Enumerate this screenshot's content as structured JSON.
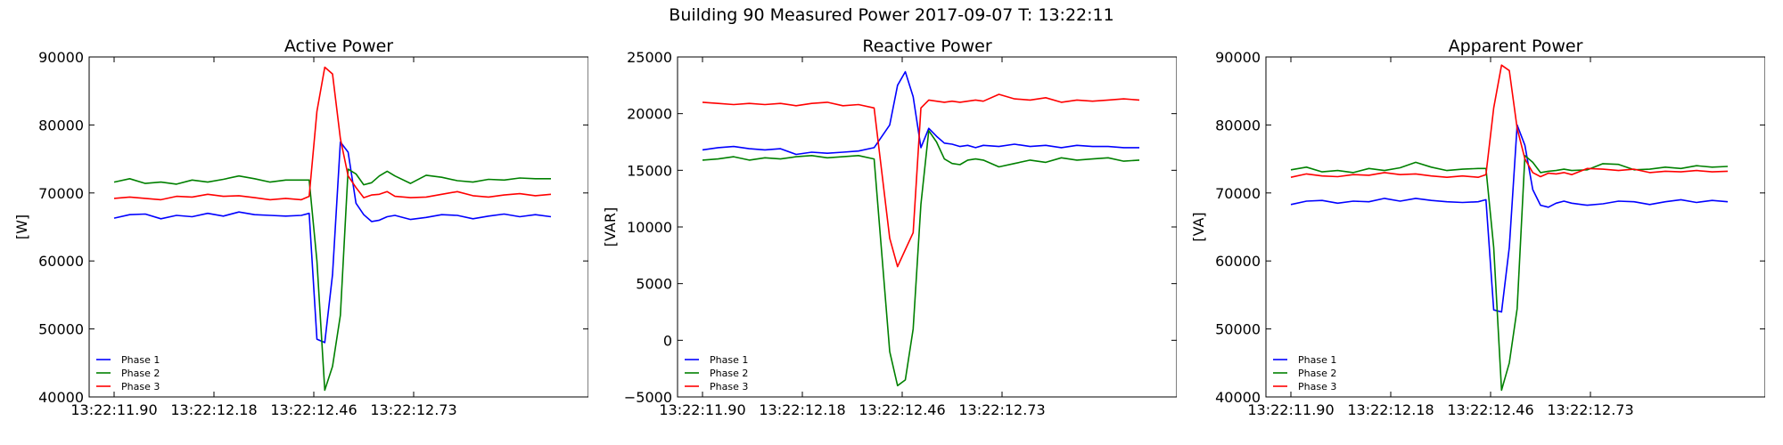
{
  "figure": {
    "suptitle": "Building 90 Measured Power 2017-09-07 T: 13:22:11"
  },
  "chart_data": [
    {
      "type": "line",
      "title": "Active Power",
      "xlabel": "",
      "ylabel": "[W]",
      "ylim": [
        40000,
        90000
      ],
      "yticks": [
        40000,
        50000,
        60000,
        70000,
        80000,
        90000
      ],
      "xlim": [
        -0.8,
        15.2
      ],
      "xtick_positions": [
        0,
        3.2,
        6.4,
        9.6
      ],
      "xtick_labels": [
        "13:22:11.90",
        "13:22:12.18",
        "13:22:12.46",
        "13:22:12.73"
      ],
      "grid": false,
      "legend": "lower-left",
      "x": [
        0,
        0.5,
        1,
        1.5,
        2,
        2.5,
        3,
        3.5,
        4,
        4.5,
        5,
        5.5,
        6,
        6.25,
        6.5,
        6.75,
        7,
        7.25,
        7.5,
        7.75,
        8,
        8.25,
        8.5,
        8.75,
        9,
        9.5,
        10,
        10.5,
        11,
        11.5,
        12,
        12.5,
        13,
        13.5,
        14
      ],
      "series": [
        {
          "name": "Phase 1",
          "color": "#0000ff",
          "values": [
            66300,
            66800,
            66900,
            66200,
            66700,
            66500,
            67000,
            66600,
            67200,
            66800,
            66700,
            66600,
            66700,
            67000,
            48500,
            48000,
            58000,
            77500,
            76000,
            68500,
            66800,
            65800,
            66000,
            66500,
            66700,
            66100,
            66400,
            66800,
            66700,
            66200,
            66600,
            66900,
            66500,
            66800,
            66500
          ]
        },
        {
          "name": "Phase 2",
          "color": "#008000",
          "values": [
            71600,
            72100,
            71400,
            71600,
            71300,
            71900,
            71600,
            72000,
            72500,
            72100,
            71600,
            71900,
            71900,
            71900,
            60000,
            41000,
            44500,
            52000,
            73500,
            72800,
            71200,
            71500,
            72500,
            73200,
            72500,
            71400,
            72600,
            72300,
            71800,
            71600,
            72000,
            71900,
            72200,
            72100,
            72100
          ]
        },
        {
          "name": "Phase 3",
          "color": "#ff0000",
          "values": [
            69200,
            69400,
            69200,
            69000,
            69500,
            69400,
            69800,
            69500,
            69600,
            69300,
            69000,
            69200,
            69000,
            69500,
            82000,
            88500,
            87500,
            78000,
            72500,
            70800,
            69300,
            69700,
            69800,
            70200,
            69500,
            69300,
            69400,
            69800,
            70200,
            69600,
            69400,
            69700,
            69900,
            69600,
            69800
          ]
        }
      ]
    },
    {
      "type": "line",
      "title": "Reactive Power",
      "xlabel": "",
      "ylabel": "[VAR]",
      "ylim": [
        -5000,
        25000
      ],
      "yticks": [
        -5000,
        0,
        5000,
        10000,
        15000,
        20000,
        25000
      ],
      "xlim": [
        -0.8,
        15.2
      ],
      "xtick_positions": [
        0,
        3.2,
        6.4,
        9.6
      ],
      "xtick_labels": [
        "13:22:11.90",
        "13:22:12.18",
        "13:22:12.46",
        "13:22:12.73"
      ],
      "grid": false,
      "legend": "lower-left",
      "x": [
        0,
        0.5,
        1,
        1.5,
        2,
        2.5,
        3,
        3.5,
        4,
        4.5,
        5,
        5.5,
        6,
        6.25,
        6.5,
        6.75,
        7,
        7.25,
        7.5,
        7.75,
        8,
        8.25,
        8.5,
        8.75,
        9,
        9.5,
        10,
        10.5,
        11,
        11.5,
        12,
        12.5,
        13,
        13.5,
        14
      ],
      "series": [
        {
          "name": "Phase 1",
          "color": "#0000ff",
          "values": [
            16800,
            17000,
            17100,
            16900,
            16800,
            16900,
            16400,
            16600,
            16500,
            16600,
            16700,
            17000,
            19000,
            22500,
            23700,
            21500,
            17000,
            18700,
            18000,
            17400,
            17300,
            17100,
            17200,
            17000,
            17200,
            17100,
            17300,
            17100,
            17200,
            17000,
            17200,
            17100,
            17100,
            17000,
            17000
          ]
        },
        {
          "name": "Phase 2",
          "color": "#008000",
          "values": [
            15900,
            16000,
            16200,
            15900,
            16100,
            16000,
            16200,
            16300,
            16100,
            16200,
            16300,
            16000,
            -1000,
            -4000,
            -3500,
            1000,
            12000,
            18500,
            17500,
            16000,
            15600,
            15500,
            15900,
            16000,
            15900,
            15300,
            15600,
            15900,
            15700,
            16100,
            15900,
            16000,
            16100,
            15800,
            15900
          ]
        },
        {
          "name": "Phase 3",
          "color": "#ff0000",
          "values": [
            21000,
            20900,
            20800,
            20900,
            20800,
            20900,
            20700,
            20900,
            21000,
            20700,
            20800,
            20500,
            9000,
            6500,
            8000,
            9500,
            20500,
            21200,
            21100,
            21000,
            21100,
            21000,
            21100,
            21200,
            21100,
            21700,
            21300,
            21200,
            21400,
            21000,
            21200,
            21100,
            21200,
            21300,
            21200
          ]
        }
      ]
    },
    {
      "type": "line",
      "title": "Apparent Power",
      "xlabel": "",
      "ylabel": "[VA]",
      "ylim": [
        40000,
        90000
      ],
      "yticks": [
        40000,
        50000,
        60000,
        70000,
        80000,
        90000
      ],
      "xlim": [
        -0.8,
        15.2
      ],
      "xtick_positions": [
        0,
        3.2,
        6.4,
        9.6
      ],
      "xtick_labels": [
        "13:22:11.90",
        "13:22:12.18",
        "13:22:12.46",
        "13:22:12.73"
      ],
      "grid": false,
      "legend": "lower-left",
      "x": [
        0,
        0.5,
        1,
        1.5,
        2,
        2.5,
        3,
        3.5,
        4,
        4.5,
        5,
        5.5,
        6,
        6.25,
        6.5,
        6.75,
        7,
        7.25,
        7.5,
        7.75,
        8,
        8.25,
        8.5,
        8.75,
        9,
        9.5,
        10,
        10.5,
        11,
        11.5,
        12,
        12.5,
        13,
        13.5,
        14
      ],
      "series": [
        {
          "name": "Phase 1",
          "color": "#0000ff",
          "values": [
            68300,
            68800,
            68900,
            68500,
            68800,
            68700,
            69200,
            68800,
            69200,
            68900,
            68700,
            68600,
            68700,
            69000,
            52800,
            52500,
            62000,
            80000,
            77000,
            70500,
            68200,
            67900,
            68500,
            68800,
            68500,
            68200,
            68400,
            68800,
            68700,
            68300,
            68700,
            69000,
            68600,
            68900,
            68700
          ]
        },
        {
          "name": "Phase 2",
          "color": "#008000",
          "values": [
            73400,
            73800,
            73100,
            73300,
            73000,
            73600,
            73300,
            73700,
            74500,
            73800,
            73300,
            73500,
            73600,
            73600,
            62000,
            41000,
            45000,
            53000,
            75500,
            74500,
            73000,
            73200,
            73300,
            73500,
            73300,
            73400,
            74300,
            74200,
            73400,
            73500,
            73800,
            73600,
            74000,
            73800,
            73900
          ]
        },
        {
          "name": "Phase 3",
          "color": "#ff0000",
          "values": [
            72300,
            72800,
            72500,
            72400,
            72700,
            72600,
            73000,
            72700,
            72800,
            72500,
            72300,
            72500,
            72300,
            72700,
            82500,
            88800,
            88000,
            79500,
            75000,
            73000,
            72400,
            72900,
            72800,
            73000,
            72700,
            73600,
            73500,
            73300,
            73500,
            73000,
            73200,
            73100,
            73300,
            73100,
            73200
          ]
        }
      ]
    }
  ]
}
